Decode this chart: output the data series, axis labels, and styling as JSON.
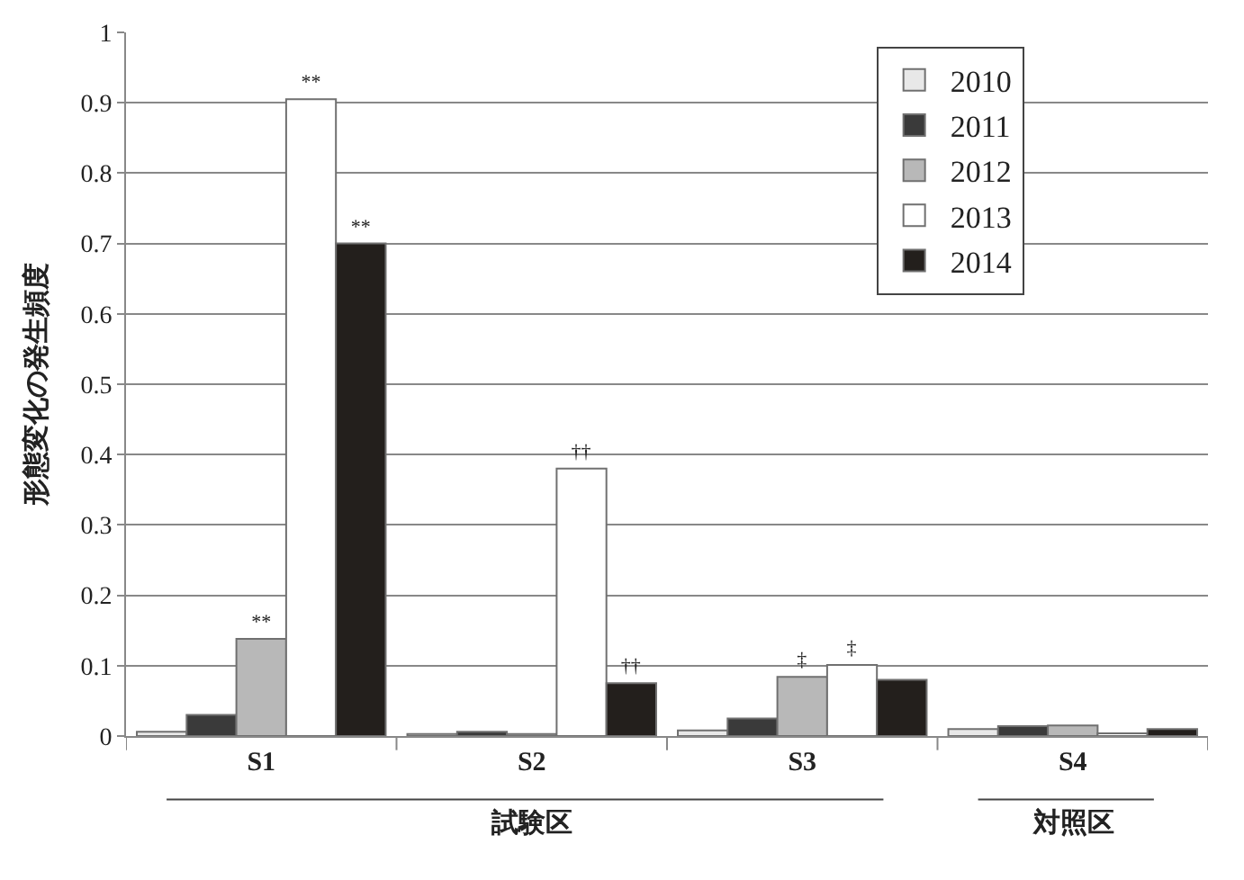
{
  "chart_data": {
    "type": "bar",
    "ylabel": "形態変化の発生頻度",
    "categories": [
      "S1",
      "S2",
      "S3",
      "S4"
    ],
    "series": [
      {
        "name": "2010",
        "color": "#e8e8e8",
        "values": [
          0.006,
          0.003,
          0.008,
          0.01
        ],
        "value_labels": [
          null,
          null,
          null,
          null
        ]
      },
      {
        "name": "2011",
        "color": "#3a3a3a",
        "values": [
          0.03,
          0.006,
          0.025,
          0.014
        ],
        "value_labels": [
          null,
          null,
          null,
          null
        ]
      },
      {
        "name": "2012",
        "color": "#b8b8b8",
        "values": [
          0.138,
          0.003,
          0.084,
          0.015
        ],
        "value_labels": [
          "**",
          null,
          "‡",
          null
        ]
      },
      {
        "name": "2013",
        "color": "#ffffff",
        "values": [
          0.905,
          0.38,
          0.101,
          0.004
        ],
        "value_labels": [
          "**",
          "††",
          "‡",
          null
        ]
      },
      {
        "name": "2014",
        "color": "#231f1c",
        "values": [
          0.7,
          0.075,
          0.08,
          0.01
        ],
        "value_labels": [
          "**",
          "††",
          null,
          null
        ]
      }
    ],
    "ylim": [
      0,
      1
    ],
    "yticks": [
      0,
      0.1,
      0.2,
      0.3,
      0.4,
      0.5,
      0.6,
      0.7,
      0.8,
      0.9,
      1
    ],
    "grid": "y",
    "legend": "top right",
    "annotations": [
      "試験区",
      "対照区"
    ]
  }
}
